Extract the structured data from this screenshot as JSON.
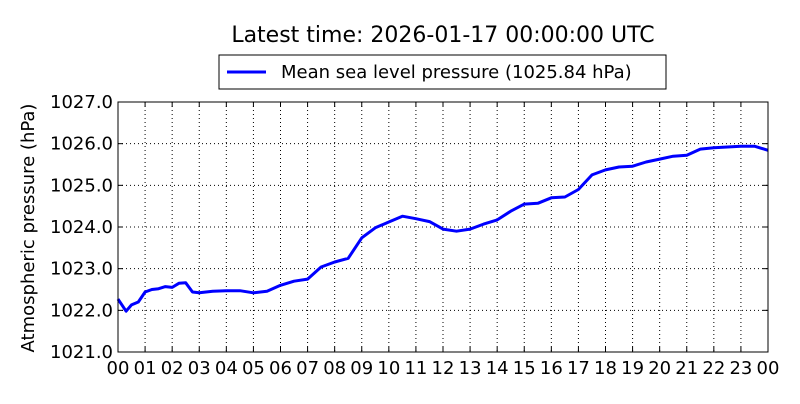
{
  "chart_data": {
    "type": "line",
    "title": "Latest time: 2026-01-17 00:00:00 UTC",
    "xlabel": "",
    "ylabel": "Atmospheric pressure (hPa)",
    "xlim": [
      0,
      24
    ],
    "ylim": [
      1021.0,
      1027.0
    ],
    "grid": true,
    "legend_position": "top-center",
    "x_tick_labels": [
      "00",
      "01",
      "02",
      "03",
      "04",
      "05",
      "06",
      "07",
      "08",
      "09",
      "10",
      "11",
      "12",
      "13",
      "14",
      "15",
      "16",
      "17",
      "18",
      "19",
      "20",
      "21",
      "22",
      "23",
      "00"
    ],
    "y_tick_labels": [
      "1021.0",
      "1022.0",
      "1023.0",
      "1024.0",
      "1025.0",
      "1026.0",
      "1027.0"
    ],
    "series": [
      {
        "name": "Mean sea level pressure (1025.84 hPa)",
        "color": "#0000ff",
        "x": [
          0,
          0.3,
          0.5,
          0.75,
          1,
          1.25,
          1.5,
          1.75,
          2,
          2.25,
          2.5,
          2.75,
          3,
          3.5,
          4,
          4.5,
          5,
          5.5,
          6,
          6.5,
          7,
          7.5,
          8,
          8.5,
          9,
          9.5,
          10,
          10.5,
          11,
          11.5,
          12,
          12.5,
          13,
          13.5,
          14,
          14.5,
          15,
          15.5,
          16,
          16.5,
          17,
          17.5,
          18,
          18.5,
          19,
          19.5,
          20,
          20.5,
          21,
          21.5,
          22,
          22.5,
          23,
          23.5,
          24
        ],
        "y": [
          1022.27,
          1021.98,
          1022.13,
          1022.2,
          1022.44,
          1022.5,
          1022.52,
          1022.57,
          1022.55,
          1022.65,
          1022.66,
          1022.44,
          1022.42,
          1022.46,
          1022.47,
          1022.47,
          1022.42,
          1022.46,
          1022.6,
          1022.7,
          1022.75,
          1023.04,
          1023.16,
          1023.25,
          1023.74,
          1023.98,
          1024.12,
          1024.26,
          1024.2,
          1024.13,
          1023.95,
          1023.9,
          1023.95,
          1024.07,
          1024.17,
          1024.38,
          1024.55,
          1024.57,
          1024.7,
          1024.72,
          1024.9,
          1025.25,
          1025.37,
          1025.44,
          1025.46,
          1025.56,
          1025.63,
          1025.7,
          1025.72,
          1025.87,
          1025.9,
          1025.92,
          1025.94,
          1025.94,
          1025.84
        ]
      }
    ]
  }
}
